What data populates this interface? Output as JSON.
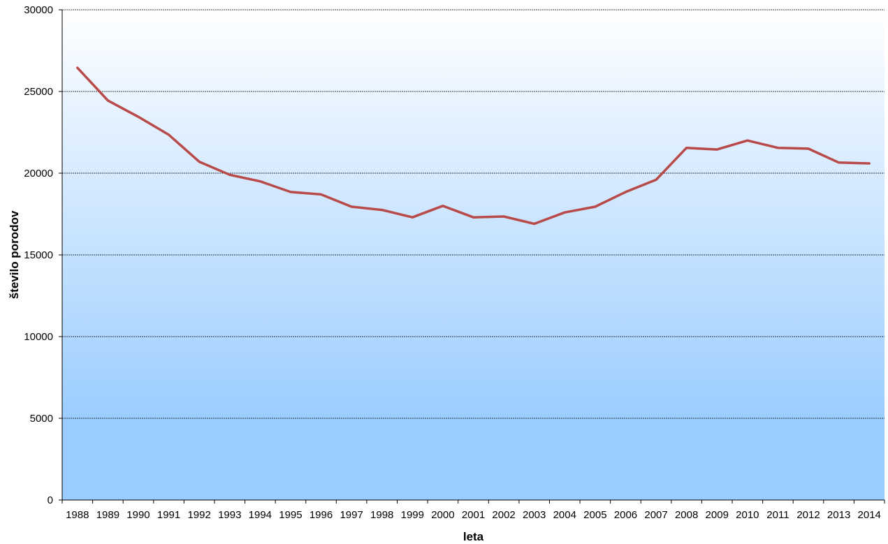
{
  "chart_data": {
    "type": "line",
    "title": "",
    "xlabel": "leta",
    "ylabel": "število porodov",
    "ylim": [
      0,
      30000
    ],
    "yticks": [
      0,
      5000,
      10000,
      15000,
      20000,
      25000,
      30000
    ],
    "grid": true,
    "legend": "none",
    "categories": [
      "1988",
      "1989",
      "1990",
      "1991",
      "1992",
      "1993",
      "1994",
      "1995",
      "1996",
      "1997",
      "1998",
      "1999",
      "2000",
      "2001",
      "2002",
      "2003",
      "2004",
      "2005",
      "2006",
      "2007",
      "2008",
      "2009",
      "2010",
      "2011",
      "2012",
      "2013",
      "2014"
    ],
    "series": [
      {
        "values": [
          26450,
          24450,
          23450,
          22350,
          20700,
          19900,
          19500,
          18850,
          18700,
          17950,
          17750,
          17300,
          18000,
          17300,
          17350,
          16900,
          17600,
          17950,
          18850,
          19600,
          21550,
          21450,
          22000,
          21550,
          21500,
          20650,
          20600
        ]
      }
    ],
    "colors": {
      "line": "#b84a4a",
      "gradient_top": "#ffffff",
      "gradient_bottom": "#99ccff",
      "grid": "#000000",
      "axis": "#000000"
    }
  }
}
